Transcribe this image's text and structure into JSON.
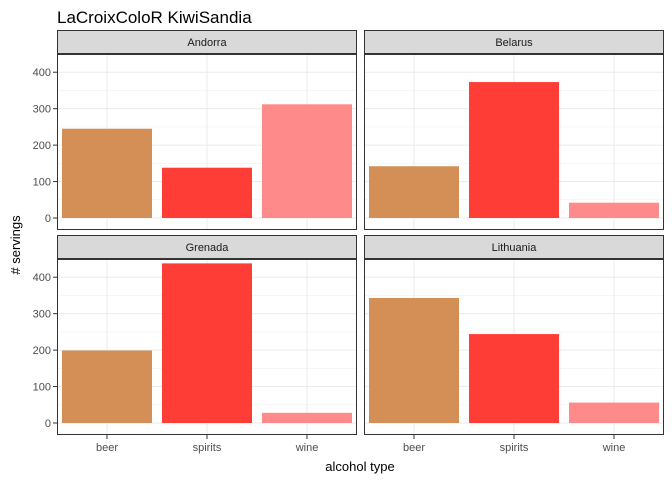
{
  "chart_data": {
    "type": "bar",
    "title": "LaCroixColoR KiwiSandia",
    "xlabel": "alcohol type",
    "ylabel": "# servings",
    "categories": [
      "beer",
      "spirits",
      "wine"
    ],
    "ylim": [
      0,
      450
    ],
    "yticks": [
      0,
      100,
      200,
      300,
      400
    ],
    "grid": true,
    "legend": "none",
    "colors": {
      "beer": "#D38F55",
      "spirits": "#FF3D37",
      "wine": "#FF8A8A"
    },
    "panels": [
      {
        "name": "Andorra",
        "values": [
          245,
          138,
          312
        ]
      },
      {
        "name": "Belarus",
        "values": [
          142,
          373,
          42
        ]
      },
      {
        "name": "Grenada",
        "values": [
          199,
          438,
          28
        ]
      },
      {
        "name": "Lithuania",
        "values": [
          343,
          244,
          56
        ]
      }
    ]
  }
}
